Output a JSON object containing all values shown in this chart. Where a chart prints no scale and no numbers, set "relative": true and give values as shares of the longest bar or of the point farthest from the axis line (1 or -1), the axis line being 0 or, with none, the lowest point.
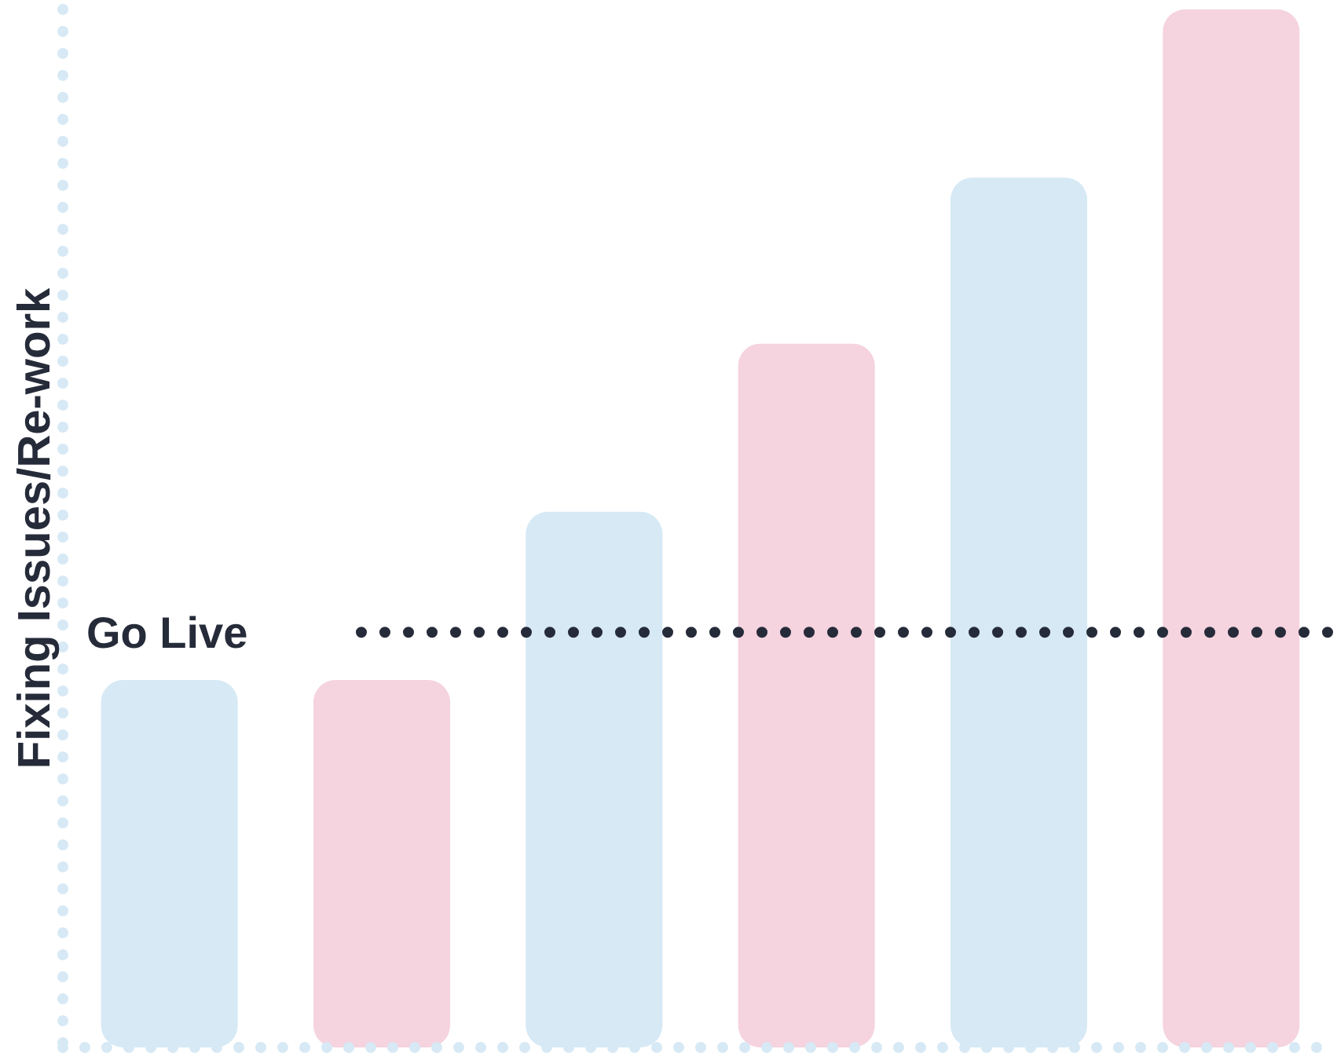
{
  "chart_data": {
    "type": "bar",
    "ylabel": "Fixing Issues/Re-work",
    "relative": true,
    "categories": [
      null,
      null,
      null,
      null,
      null,
      null
    ],
    "values": [
      0.354,
      0.354,
      0.516,
      0.678,
      0.838,
      1
    ],
    "colors": [
      "#d6e9f5",
      "#f5d3df",
      "#d6e9f5",
      "#f5d3df",
      "#d6e9f5",
      "#f5d3df"
    ],
    "ref_lines": [
      {
        "axis": "y",
        "value": 0.4,
        "label": "Go Live",
        "color": "#262b3a",
        "line_style": "dotted"
      }
    ],
    "grid": false,
    "legend": false
  }
}
